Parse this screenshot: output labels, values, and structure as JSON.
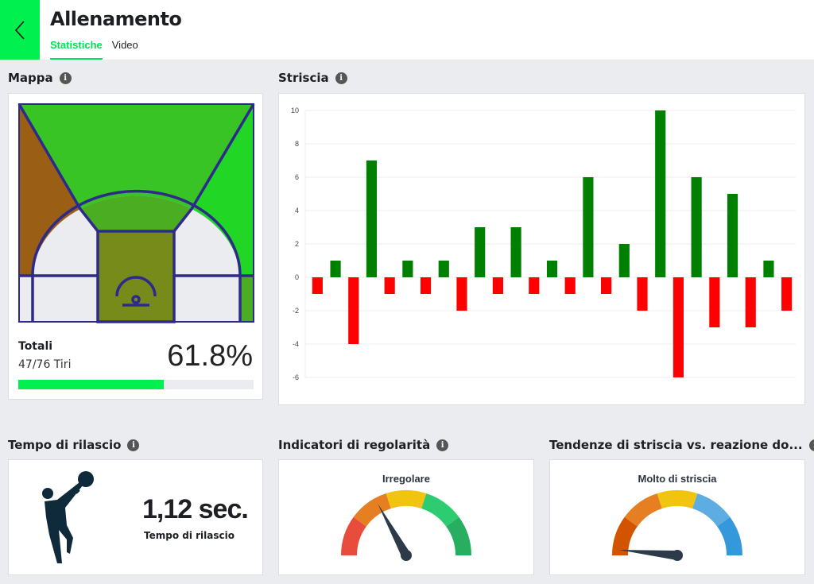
{
  "header": {
    "title": "Allenamento",
    "tabs": [
      {
        "label": "Statistiche",
        "active": true
      },
      {
        "label": "Video",
        "active": false
      }
    ],
    "accent": "#00f050"
  },
  "mappa": {
    "label": "Mappa",
    "totals_label": "Totali",
    "shots": "47/76 Tiri",
    "percentage": "61.8%",
    "progress_percent": 61.8,
    "zone_colors": {
      "left_corner_wing": "#9a5f14",
      "top": "#38c424",
      "right_wing": "#22d626",
      "mid_range": "#4aad22",
      "paint": "#778b1a",
      "right_corner": "#4aad22",
      "neutral": "#ebecf0"
    }
  },
  "striscia": {
    "label": "Striscia"
  },
  "chart_data": {
    "type": "bar",
    "title": "",
    "xlabel": "",
    "ylabel": "",
    "ylim": [
      -6,
      10
    ],
    "yticks": [
      10,
      8,
      6,
      4,
      2,
      0,
      -2,
      -4,
      -6
    ],
    "grid": true,
    "values": [
      -1,
      1,
      -4,
      7,
      -1,
      1,
      -1,
      1,
      -2,
      3,
      -1,
      3,
      -1,
      1,
      -1,
      6,
      -1,
      2,
      -2,
      10,
      -6,
      6,
      -3,
      5,
      -3,
      1,
      -2
    ],
    "positive_color": "#008000",
    "negative_color": "#ff0000"
  },
  "rilascio": {
    "label": "Tempo di rilascio",
    "value": "1,12 sec.",
    "caption": "Tempo di rilascio"
  },
  "regolarita": {
    "label": "Indicatori di regolarità",
    "gauge_label": "Irregolare",
    "needle_value": 0.34,
    "colors": [
      "#e74c3c",
      "#e67e22",
      "#f1c40f",
      "#2ecc71",
      "#27ae60"
    ]
  },
  "tendenze": {
    "label": "Tendenze di striscia vs. reazione do...",
    "gauge_label": "Molto di striscia",
    "needle_value": 0.03,
    "colors": [
      "#d35400",
      "#e67e22",
      "#f1c40f",
      "#5dade2",
      "#3498db"
    ]
  }
}
